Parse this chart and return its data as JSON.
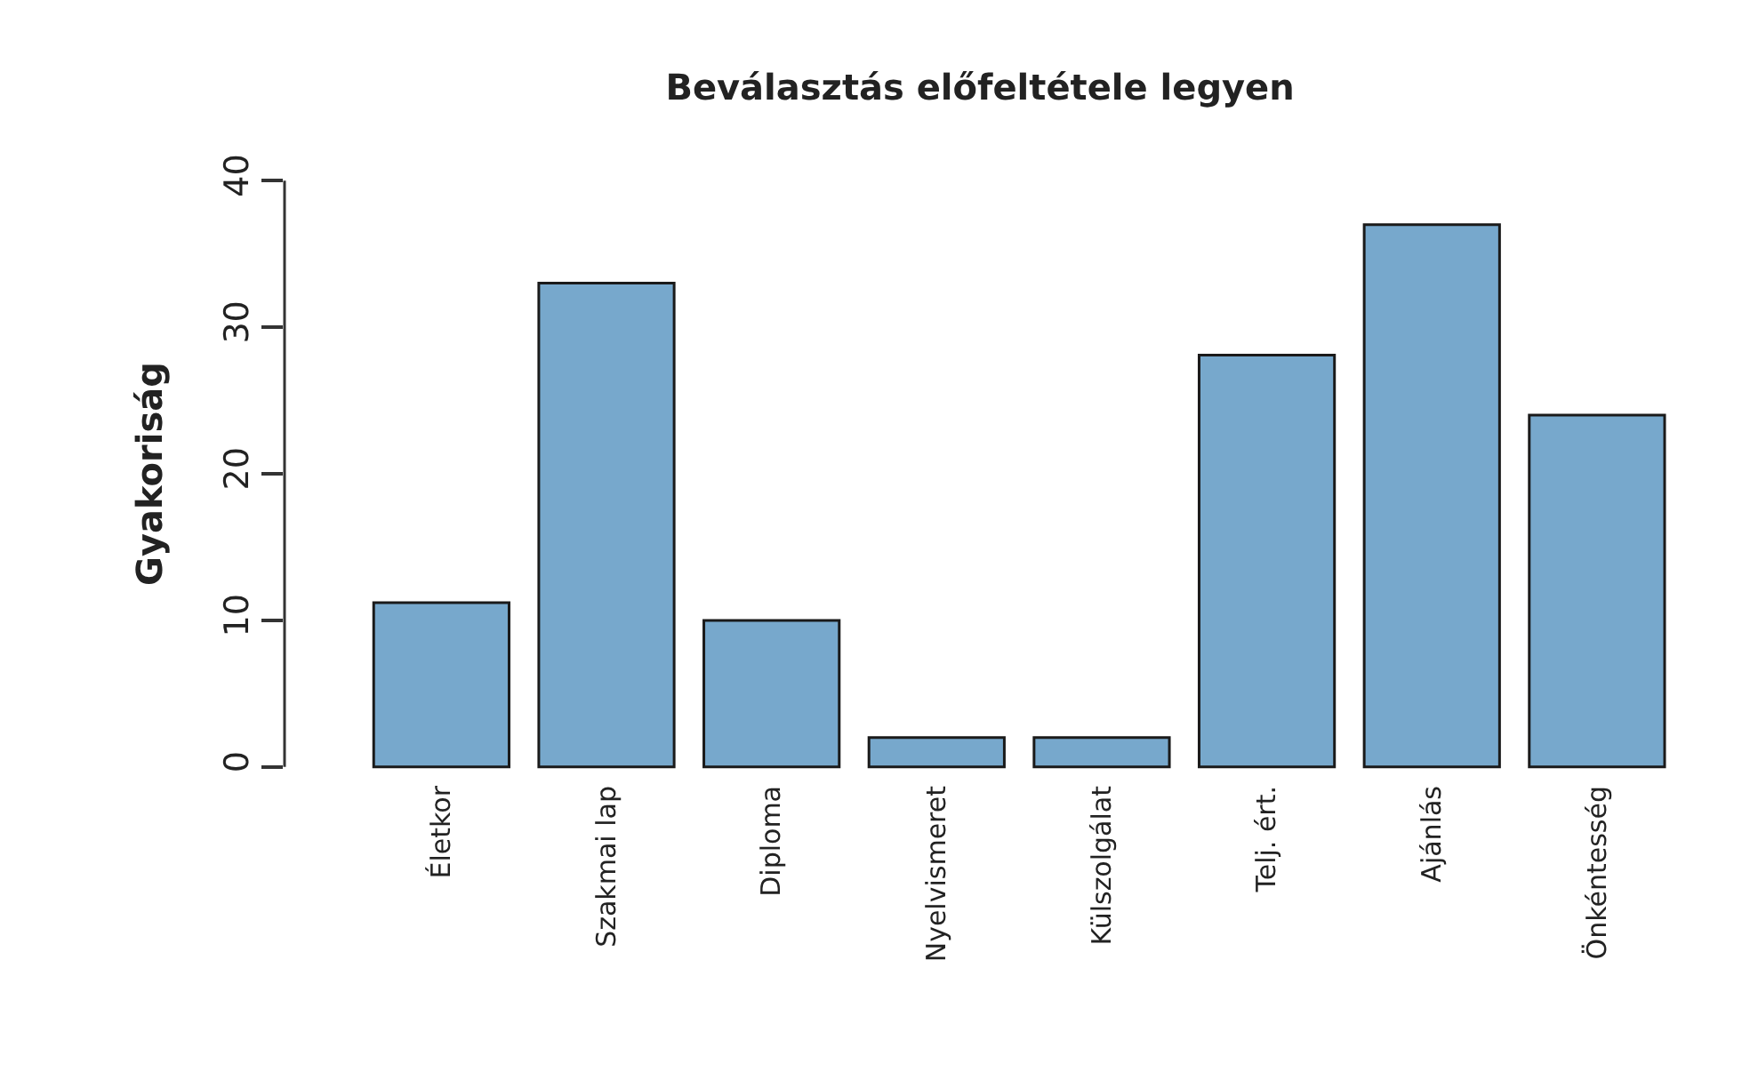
{
  "chart_data": {
    "type": "bar",
    "title": "Beválasztás előfeltétele legyen",
    "ylabel": "Gyakoriság",
    "categories": [
      "Életkor",
      "Szakmai lap",
      "Diploma",
      "Nyelvismeret",
      "Külszolgálat",
      "Telj. ért.",
      "Ajánlás",
      "Önkéntesség"
    ],
    "values": [
      11.2,
      33,
      10,
      2,
      2,
      28.1,
      37,
      24
    ],
    "color": "#77a8cc",
    "ylim": [
      0,
      40
    ],
    "yticks": [
      0,
      10,
      20,
      30,
      40
    ]
  }
}
